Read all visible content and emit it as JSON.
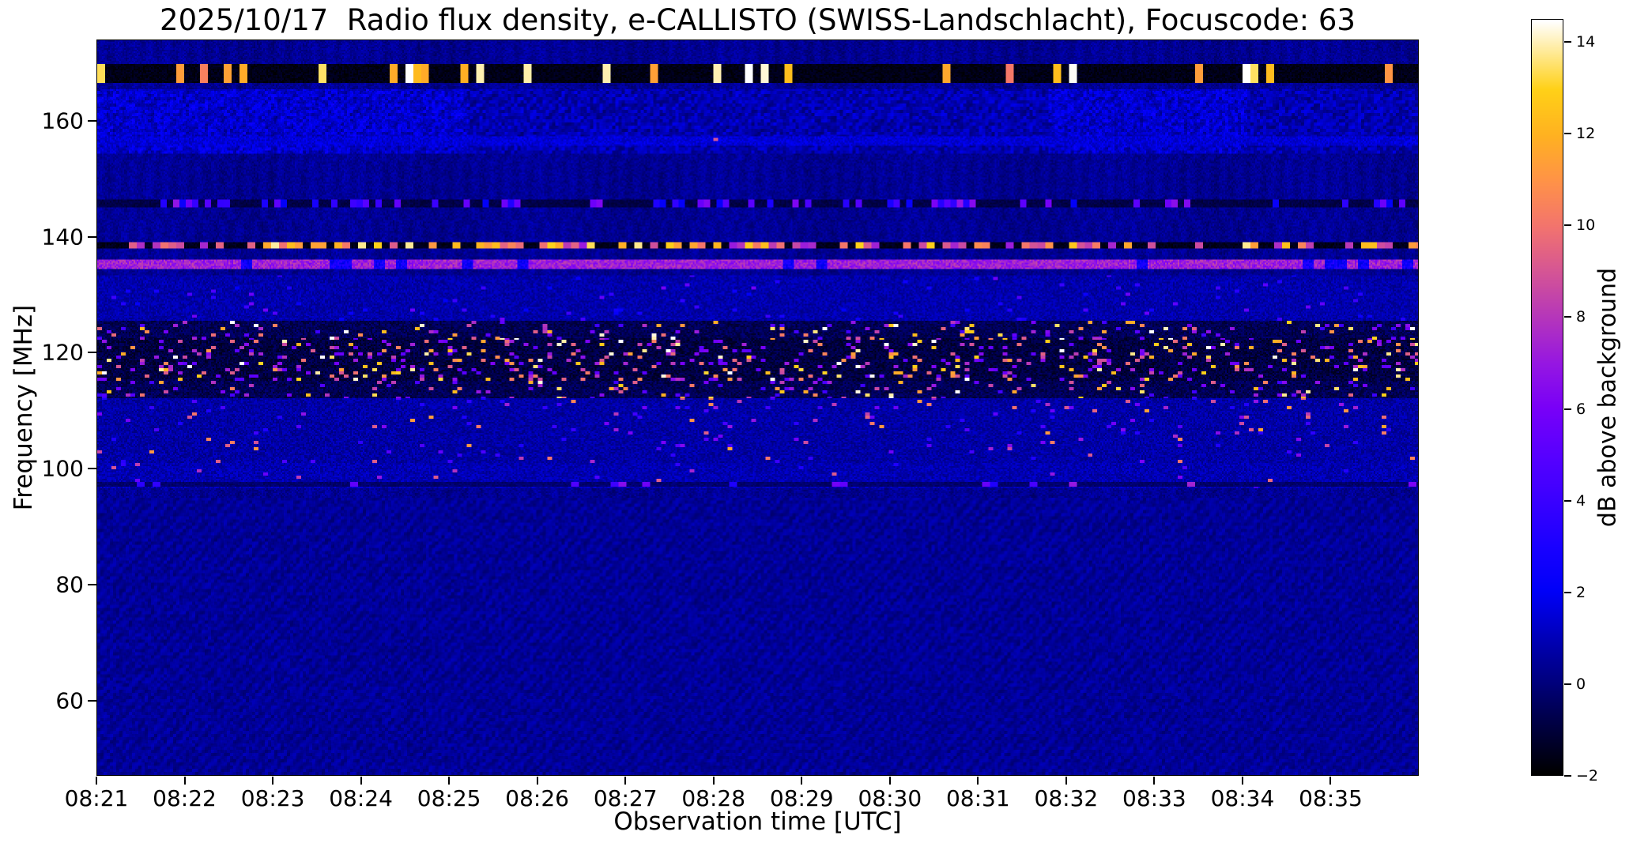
{
  "chart_data": {
    "type": "heatmap",
    "subtype": "radio-spectrogram",
    "title": "2025/10/17  Radio flux density, e-CALLISTO (SWISS-Landschlacht), Focuscode: 63",
    "xlabel": "Observation time [UTC]",
    "ylabel": "Frequency [MHz]",
    "colorbar_label": "dB above background",
    "x_ticks": [
      "08:21",
      "08:22",
      "08:23",
      "08:24",
      "08:25",
      "08:26",
      "08:27",
      "08:28",
      "08:29",
      "08:30",
      "08:31",
      "08:32",
      "08:33",
      "08:34",
      "08:35"
    ],
    "x_start": "08:21",
    "x_span_minutes": 15,
    "y_ticks": [
      160,
      140,
      120,
      100,
      80,
      60
    ],
    "y_range": [
      47,
      174
    ],
    "value_range": [
      -2,
      14.5
    ],
    "colorbar_ticks": [
      -2,
      0,
      2,
      4,
      6,
      8,
      10,
      12,
      14
    ],
    "grid": false,
    "legend": "none",
    "colormap": {
      "name": "gnuplot2-like (black-blue-violet-pink-yellow-white)",
      "stops": [
        [
          0.0,
          "#000000"
        ],
        [
          0.06,
          "#00003d"
        ],
        [
          0.121,
          "#00007c"
        ],
        [
          0.18,
          "#0000b8"
        ],
        [
          0.242,
          "#0000f8"
        ],
        [
          0.3,
          "#1900ff"
        ],
        [
          0.364,
          "#3b00ff"
        ],
        [
          0.42,
          "#5600ff"
        ],
        [
          0.485,
          "#7800f8"
        ],
        [
          0.545,
          "#9617e2"
        ],
        [
          0.606,
          "#b536bb"
        ],
        [
          0.667,
          "#d55595"
        ],
        [
          0.727,
          "#f3746e"
        ],
        [
          0.787,
          "#ff9248"
        ],
        [
          0.848,
          "#ffb121"
        ],
        [
          0.909,
          "#ffd117"
        ],
        [
          0.95,
          "#ffe680"
        ],
        [
          1.0,
          "#ffffff"
        ]
      ]
    },
    "background_level_db": 0.35,
    "features": [
      {
        "name": "quiet-low-band",
        "desc": "smooth dark blue background below ~95 MHz with faint vertical striping",
        "type": "mottle",
        "fmin": 47,
        "fmax": 95,
        "base": 0.35,
        "var": 0.9
      },
      {
        "name": "sparse-speckles-97-101",
        "type": "speckle",
        "fmin": 96.5,
        "fmax": 101,
        "floor": 0.2,
        "p": 0.012,
        "clust": 3,
        "imin": 3,
        "imax": 10
      },
      {
        "name": "dark-dashed-line-97",
        "type": "burst_band",
        "fmin": 97.0,
        "fmax": 97.7,
        "floor": -0.6,
        "duty": 0.08,
        "seglen": 5,
        "imin": 3,
        "imax": 8
      },
      {
        "name": "speckles-101-112",
        "type": "speckle",
        "fmin": 101,
        "fmax": 112,
        "floor": 0.0,
        "p": 0.035,
        "clust": 3,
        "imin": 3,
        "imax": 12
      },
      {
        "name": "noisy-band-112-125",
        "desc": "black background with many bright RFI speckles",
        "type": "speckle",
        "fmin": 112,
        "fmax": 125.5,
        "floor": -1.3,
        "p": 0.09,
        "clust": 3,
        "imin": 4,
        "imax": 15
      },
      {
        "name": "dense-core-115-122",
        "desc": "densest white/yellow speckle core",
        "type": "speckle",
        "fmin": 115,
        "fmax": 122.5,
        "floor": -1.6,
        "p": 0.15,
        "clust": 3,
        "imin": 5,
        "imax": 15
      },
      {
        "name": "dim-speckles-126-133",
        "type": "speckle",
        "fmin": 125.5,
        "fmax": 133.5,
        "floor": 0.1,
        "p": 0.02,
        "clust": 3,
        "imin": 2,
        "imax": 6
      },
      {
        "name": "pink-carrier-135MHz",
        "desc": "continuous bright pink carrier ~135 MHz, 6-8 dB",
        "type": "solid_band",
        "fmin": 134.6,
        "fmax": 136.0,
        "imin": 6.0,
        "imax": 8.5,
        "gap_duty": 0.16,
        "gap_len": 7
      },
      {
        "name": "burst-carrier-138MHz",
        "desc": "strong dashed carrier ~138-139 MHz alternating bright/black",
        "type": "burst_band",
        "fmin": 137.9,
        "fmax": 139.2,
        "floor": -1.9,
        "duty": 0.5,
        "seglen": 5,
        "imin": 7,
        "imax": 14
      },
      {
        "name": "dashed-band-146MHz",
        "type": "burst_band",
        "fmin": 145.2,
        "fmax": 146.5,
        "floor": -1.2,
        "duty": 0.32,
        "seglen": 4,
        "imin": 2,
        "imax": 7
      },
      {
        "name": "upper-noise-155-165",
        "desc": "faint blue mottled interference, stronger on left third and patch near 08:32",
        "type": "mottle",
        "fmin": 154.5,
        "fmax": 165.5,
        "base": 0.7,
        "var": 1.6,
        "left_boost": 0.9,
        "patch_x": [
          0.72,
          0.87
        ],
        "patch_boost": 0.9
      },
      {
        "name": "bright-dots-156MHz",
        "type": "speckle",
        "fmin": 155.8,
        "fmax": 157.3,
        "floor": 0.8,
        "p": 0.003,
        "clust": 3,
        "imin": 8,
        "imax": 11
      },
      {
        "name": "calibration-band-168MHz",
        "desc": "black band ~167-170 MHz with intermittent saturated white/yellow bursts",
        "type": "burst_band",
        "fmin": 166.6,
        "fmax": 170.0,
        "floor": -2.0,
        "duty": 0.2,
        "seglen": 5,
        "imin": 10,
        "imax": 15.5
      }
    ]
  }
}
